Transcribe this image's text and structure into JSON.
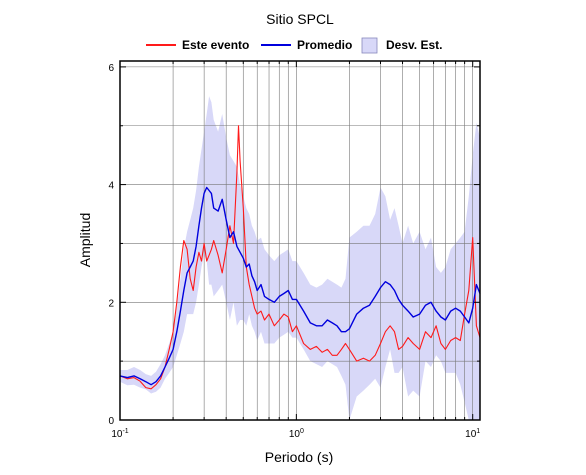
{
  "chart_data": {
    "type": "line",
    "title": "Sitio SPCL",
    "xlabel": "Periodo (s)",
    "ylabel": "Amplitud",
    "xscale": "log",
    "xlim": [
      0.1,
      11
    ],
    "ylim": [
      0,
      6.1
    ],
    "yticks": [
      0,
      2,
      4,
      6
    ],
    "xticks": [
      {
        "value": 0.1,
        "base": "10",
        "exp": "-1"
      },
      {
        "value": 1,
        "base": "10",
        "exp": "0"
      },
      {
        "value": 10,
        "base": "10",
        "exp": "1"
      }
    ],
    "grid": true,
    "legend": {
      "position": "top",
      "entries": [
        {
          "label": "Este evento",
          "kind": "line",
          "color": "#ff1a1a"
        },
        {
          "label": "Promedio",
          "kind": "line",
          "color": "#0000dd"
        },
        {
          "label": "Desv. Est.",
          "kind": "band",
          "color": "#d8d8f8"
        }
      ]
    },
    "series": [
      {
        "name": "Este evento",
        "color": "#ff1a1a",
        "x": [
          0.1,
          0.11,
          0.12,
          0.13,
          0.14,
          0.15,
          0.16,
          0.17,
          0.18,
          0.19,
          0.2,
          0.21,
          0.22,
          0.23,
          0.24,
          0.25,
          0.26,
          0.27,
          0.28,
          0.29,
          0.3,
          0.31,
          0.32,
          0.33,
          0.34,
          0.36,
          0.38,
          0.4,
          0.42,
          0.44,
          0.46,
          0.47,
          0.48,
          0.5,
          0.52,
          0.54,
          0.56,
          0.58,
          0.6,
          0.63,
          0.66,
          0.7,
          0.75,
          0.8,
          0.85,
          0.9,
          0.95,
          1.0,
          1.1,
          1.2,
          1.3,
          1.4,
          1.5,
          1.6,
          1.7,
          1.8,
          1.9,
          2.0,
          2.2,
          2.4,
          2.6,
          2.8,
          3.0,
          3.2,
          3.4,
          3.6,
          3.8,
          4.0,
          4.3,
          4.6,
          5.0,
          5.4,
          5.8,
          6.2,
          6.6,
          7.0,
          7.5,
          8.0,
          8.5,
          9.0,
          9.5,
          10.0,
          10.5,
          11.0
        ],
        "values": [
          0.75,
          0.7,
          0.72,
          0.66,
          0.55,
          0.53,
          0.6,
          0.7,
          0.9,
          1.2,
          1.5,
          2.0,
          2.6,
          3.05,
          2.9,
          2.4,
          2.2,
          2.6,
          2.85,
          2.7,
          3.0,
          2.7,
          2.8,
          2.9,
          3.05,
          2.8,
          2.5,
          2.9,
          3.3,
          3.0,
          4.2,
          5.0,
          4.4,
          3.6,
          2.6,
          2.3,
          2.1,
          1.9,
          1.8,
          1.85,
          1.7,
          1.8,
          1.6,
          1.7,
          1.8,
          1.75,
          1.5,
          1.6,
          1.3,
          1.2,
          1.25,
          1.15,
          1.2,
          1.1,
          1.1,
          1.2,
          1.3,
          1.2,
          1.0,
          1.05,
          1.0,
          1.1,
          1.3,
          1.5,
          1.6,
          1.5,
          1.2,
          1.25,
          1.4,
          1.3,
          1.2,
          1.5,
          1.4,
          1.6,
          1.3,
          1.2,
          1.35,
          1.4,
          1.35,
          1.8,
          2.2,
          3.1,
          1.6,
          1.4
        ]
      },
      {
        "name": "Promedio",
        "color": "#0000dd",
        "x": [
          0.1,
          0.11,
          0.12,
          0.13,
          0.14,
          0.15,
          0.16,
          0.17,
          0.18,
          0.19,
          0.2,
          0.21,
          0.22,
          0.23,
          0.24,
          0.25,
          0.26,
          0.27,
          0.28,
          0.29,
          0.3,
          0.31,
          0.32,
          0.33,
          0.34,
          0.36,
          0.38,
          0.4,
          0.42,
          0.44,
          0.46,
          0.48,
          0.5,
          0.52,
          0.54,
          0.56,
          0.58,
          0.6,
          0.63,
          0.66,
          0.7,
          0.75,
          0.8,
          0.85,
          0.9,
          0.95,
          1.0,
          1.1,
          1.2,
          1.3,
          1.4,
          1.5,
          1.6,
          1.7,
          1.8,
          1.9,
          2.0,
          2.2,
          2.4,
          2.6,
          2.8,
          3.0,
          3.2,
          3.4,
          3.6,
          3.8,
          4.0,
          4.3,
          4.6,
          5.0,
          5.4,
          5.8,
          6.2,
          6.6,
          7.0,
          7.5,
          8.0,
          8.5,
          9.0,
          9.5,
          10.0,
          10.5,
          11.0
        ],
        "values": [
          0.75,
          0.72,
          0.75,
          0.7,
          0.65,
          0.6,
          0.65,
          0.75,
          0.9,
          1.05,
          1.2,
          1.5,
          1.85,
          2.2,
          2.5,
          2.6,
          2.7,
          2.95,
          3.3,
          3.6,
          3.85,
          3.95,
          3.9,
          3.85,
          3.6,
          3.55,
          3.75,
          3.4,
          3.1,
          3.2,
          2.95,
          2.85,
          2.75,
          2.6,
          2.65,
          2.45,
          2.35,
          2.2,
          2.3,
          2.1,
          2.05,
          2.0,
          2.1,
          2.15,
          2.2,
          2.05,
          2.05,
          1.85,
          1.65,
          1.6,
          1.6,
          1.7,
          1.65,
          1.6,
          1.5,
          1.5,
          1.55,
          1.8,
          1.9,
          1.95,
          2.1,
          2.25,
          2.35,
          2.3,
          2.2,
          2.05,
          1.95,
          1.85,
          1.75,
          1.8,
          1.95,
          2.0,
          1.85,
          1.75,
          1.7,
          1.85,
          1.9,
          1.85,
          1.75,
          1.65,
          1.9,
          2.3,
          2.15
        ]
      }
    ],
    "band": {
      "name": "Desv. Est.",
      "color": "#d8d8f8",
      "x": [
        0.1,
        0.11,
        0.12,
        0.13,
        0.14,
        0.15,
        0.16,
        0.17,
        0.18,
        0.19,
        0.2,
        0.21,
        0.22,
        0.23,
        0.24,
        0.25,
        0.26,
        0.27,
        0.28,
        0.29,
        0.3,
        0.31,
        0.32,
        0.33,
        0.34,
        0.36,
        0.38,
        0.4,
        0.42,
        0.44,
        0.46,
        0.48,
        0.5,
        0.52,
        0.54,
        0.56,
        0.58,
        0.6,
        0.63,
        0.66,
        0.7,
        0.75,
        0.8,
        0.85,
        0.9,
        0.95,
        1.0,
        1.1,
        1.2,
        1.3,
        1.4,
        1.5,
        1.6,
        1.7,
        1.8,
        1.9,
        2.0,
        2.2,
        2.4,
        2.6,
        2.8,
        3.0,
        3.2,
        3.4,
        3.6,
        3.8,
        4.0,
        4.3,
        4.6,
        5.0,
        5.4,
        5.8,
        6.2,
        6.6,
        7.0,
        7.5,
        8.0,
        8.5,
        9.0,
        9.5,
        10.0,
        10.5,
        11.0
      ],
      "upper": [
        0.85,
        0.85,
        0.9,
        0.85,
        0.78,
        0.75,
        0.82,
        0.95,
        1.1,
        1.3,
        1.5,
        1.9,
        2.4,
        2.9,
        3.2,
        3.4,
        3.6,
        3.9,
        4.3,
        4.6,
        4.9,
        5.2,
        5.5,
        5.4,
        5.1,
        4.9,
        5.2,
        4.8,
        4.5,
        4.4,
        4.3,
        4.0,
        3.8,
        3.6,
        3.5,
        3.3,
        3.2,
        3.05,
        3.1,
        2.9,
        2.8,
        2.7,
        2.8,
        2.85,
        2.9,
        2.7,
        2.7,
        2.5,
        2.3,
        2.25,
        2.3,
        2.4,
        2.35,
        2.3,
        2.25,
        2.4,
        3.1,
        3.2,
        3.3,
        3.3,
        3.5,
        3.95,
        3.8,
        3.4,
        3.6,
        3.3,
        3.0,
        3.3,
        3.0,
        3.2,
        2.9,
        3.1,
        2.6,
        2.5,
        2.6,
        2.9,
        3.0,
        3.1,
        3.2,
        3.8,
        4.5,
        5.05,
        4.8
      ]
    }
  }
}
